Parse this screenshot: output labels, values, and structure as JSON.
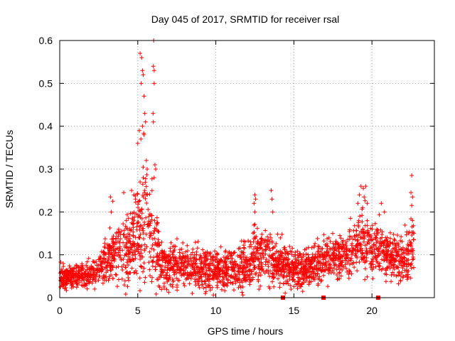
{
  "chart_data": {
    "type": "scatter",
    "title": "Day 045 of 2017, SRMTID for receiver rsal",
    "xlabel": "GPS time / hours",
    "ylabel": "SRMTID / TECUs",
    "xlim": [
      0,
      24
    ],
    "ylim": [
      0,
      0.6
    ],
    "xticks": [
      0,
      5,
      10,
      15,
      20
    ],
    "xtick_labels": [
      "0",
      "5",
      "10",
      "15",
      "20"
    ],
    "yticks": [
      0,
      0.1,
      0.2,
      0.3,
      0.4,
      0.5,
      0.6
    ],
    "ytick_labels": [
      "0",
      "0.1",
      "0.2",
      "0.3",
      "0.4",
      "0.5",
      "0.6"
    ],
    "grid": true,
    "marker": "+",
    "color": "#ff0000",
    "data_extent_hours": [
      0,
      22.7
    ],
    "profile": [
      {
        "t": 0.0,
        "base": 0.05,
        "spread": 0.025
      },
      {
        "t": 1.0,
        "base": 0.05,
        "spread": 0.025
      },
      {
        "t": 2.0,
        "base": 0.055,
        "spread": 0.03
      },
      {
        "t": 2.5,
        "base": 0.07,
        "spread": 0.035
      },
      {
        "t": 3.0,
        "base": 0.09,
        "spread": 0.05
      },
      {
        "t": 3.5,
        "base": 0.11,
        "spread": 0.07
      },
      {
        "t": 4.0,
        "base": 0.1,
        "spread": 0.07
      },
      {
        "t": 4.5,
        "base": 0.12,
        "spread": 0.08
      },
      {
        "t": 5.0,
        "base": 0.15,
        "spread": 0.1
      },
      {
        "t": 5.4,
        "base": 0.2,
        "spread": 0.15
      },
      {
        "t": 6.0,
        "base": 0.14,
        "spread": 0.1
      },
      {
        "t": 6.5,
        "base": 0.08,
        "spread": 0.06
      },
      {
        "t": 7.0,
        "base": 0.075,
        "spread": 0.05
      },
      {
        "t": 8.0,
        "base": 0.07,
        "spread": 0.045
      },
      {
        "t": 9.0,
        "base": 0.065,
        "spread": 0.045
      },
      {
        "t": 10.0,
        "base": 0.065,
        "spread": 0.045
      },
      {
        "t": 11.0,
        "base": 0.065,
        "spread": 0.045
      },
      {
        "t": 12.0,
        "base": 0.07,
        "spread": 0.05
      },
      {
        "t": 12.6,
        "base": 0.1,
        "spread": 0.07
      },
      {
        "t": 13.5,
        "base": 0.09,
        "spread": 0.06
      },
      {
        "t": 14.5,
        "base": 0.075,
        "spread": 0.05
      },
      {
        "t": 15.5,
        "base": 0.065,
        "spread": 0.045
      },
      {
        "t": 16.5,
        "base": 0.08,
        "spread": 0.05
      },
      {
        "t": 17.5,
        "base": 0.1,
        "spread": 0.055
      },
      {
        "t": 18.5,
        "base": 0.1,
        "spread": 0.06
      },
      {
        "t": 19.3,
        "base": 0.13,
        "spread": 0.08
      },
      {
        "t": 20.0,
        "base": 0.12,
        "spread": 0.06
      },
      {
        "t": 21.0,
        "base": 0.1,
        "spread": 0.05
      },
      {
        "t": 22.0,
        "base": 0.085,
        "spread": 0.05
      },
      {
        "t": 22.7,
        "base": 0.12,
        "spread": 0.07
      }
    ],
    "point_count": 2600,
    "highlights": [
      {
        "x": 5.15,
        "y": 0.57
      },
      {
        "x": 5.25,
        "y": 0.56
      },
      {
        "x": 5.3,
        "y": 0.53
      },
      {
        "x": 5.35,
        "y": 0.52
      },
      {
        "x": 5.22,
        "y": 0.5
      },
      {
        "x": 5.4,
        "y": 0.47
      },
      {
        "x": 5.45,
        "y": 0.43
      },
      {
        "x": 5.5,
        "y": 0.41
      },
      {
        "x": 5.3,
        "y": 0.4
      },
      {
        "x": 5.4,
        "y": 0.38
      },
      {
        "x": 5.1,
        "y": 0.39
      },
      {
        "x": 5.0,
        "y": 0.36
      },
      {
        "x": 5.2,
        "y": 0.37
      },
      {
        "x": 5.55,
        "y": 0.32
      },
      {
        "x": 5.6,
        "y": 0.3
      },
      {
        "x": 5.35,
        "y": 0.28
      },
      {
        "x": 5.15,
        "y": 0.27
      },
      {
        "x": 5.45,
        "y": 0.25
      },
      {
        "x": 6.02,
        "y": 0.6
      },
      {
        "x": 6.0,
        "y": 0.54
      },
      {
        "x": 6.05,
        "y": 0.53
      },
      {
        "x": 6.05,
        "y": 0.5
      },
      {
        "x": 5.98,
        "y": 0.43
      },
      {
        "x": 6.0,
        "y": 0.41
      },
      {
        "x": 6.1,
        "y": 0.31
      },
      {
        "x": 6.15,
        "y": 0.3
      },
      {
        "x": 6.05,
        "y": 0.28
      },
      {
        "x": 4.6,
        "y": 0.25
      },
      {
        "x": 4.75,
        "y": 0.24
      },
      {
        "x": 4.85,
        "y": 0.23
      },
      {
        "x": 4.1,
        "y": 0.245
      },
      {
        "x": 3.25,
        "y": 0.235
      },
      {
        "x": 3.4,
        "y": 0.225
      },
      {
        "x": 3.3,
        "y": 0.2
      },
      {
        "x": 12.5,
        "y": 0.24
      },
      {
        "x": 12.55,
        "y": 0.23
      },
      {
        "x": 12.45,
        "y": 0.22
      },
      {
        "x": 12.5,
        "y": 0.2
      },
      {
        "x": 13.55,
        "y": 0.25
      },
      {
        "x": 13.6,
        "y": 0.23
      },
      {
        "x": 13.65,
        "y": 0.2
      },
      {
        "x": 19.3,
        "y": 0.26
      },
      {
        "x": 19.45,
        "y": 0.255
      },
      {
        "x": 19.6,
        "y": 0.26
      },
      {
        "x": 19.2,
        "y": 0.24
      },
      {
        "x": 19.5,
        "y": 0.235
      },
      {
        "x": 19.7,
        "y": 0.22
      },
      {
        "x": 19.1,
        "y": 0.22
      },
      {
        "x": 19.4,
        "y": 0.21
      },
      {
        "x": 22.55,
        "y": 0.285
      },
      {
        "x": 22.5,
        "y": 0.245
      },
      {
        "x": 22.6,
        "y": 0.235
      },
      {
        "x": 22.55,
        "y": 0.215
      },
      {
        "x": 22.6,
        "y": 0.18
      },
      {
        "x": 20.6,
        "y": 0.22
      },
      {
        "x": 20.8,
        "y": 0.2
      }
    ],
    "gap_markers": [
      {
        "x": 14.3,
        "y": 0.0
      },
      {
        "x": 16.9,
        "y": 0.0
      },
      {
        "x": 20.4,
        "y": 0.0
      }
    ]
  }
}
